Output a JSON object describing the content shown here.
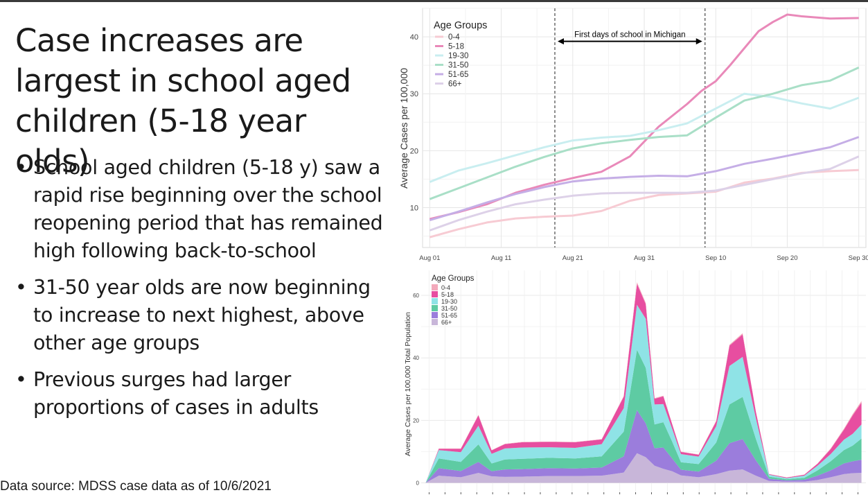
{
  "slide": {
    "title": "Case increases are largest in school aged children (5-18 year olds)",
    "bullets": [
      "School aged children (5-18 y) saw a rapid rise beginning over the school reopening period that has remained high following back-to-school",
      "31-50 year olds are now beginning to increase to next highest, above other age groups",
      "Previous surges had larger proportions of cases in adults"
    ],
    "bullet_symbol": "•",
    "source": "Data source: MDSS case data as of 10/6/2021"
  },
  "chart_data": [
    {
      "type": "line",
      "ylabel": "Average Cases per 100,000",
      "xlabel": "",
      "legend_title": "Age Groups",
      "legend_position": "top-left",
      "grid": true,
      "x_tick_labels": [
        "Aug 01",
        "Aug 11",
        "Aug 21",
        "Aug 31",
        "Sep 10",
        "Sep 20",
        "Sep 30"
      ],
      "x_tick_days": [
        0,
        10,
        20,
        30,
        40,
        50,
        60
      ],
      "xlim": [
        -1,
        61
      ],
      "ylim": [
        3,
        45
      ],
      "y_ticks": [
        10,
        20,
        30,
        40
      ],
      "annotation": {
        "text": "First days of school in Michigan",
        "from_day": 17.5,
        "to_day": 38.5,
        "y": 39.2
      },
      "vlines_day": [
        17.5,
        38.5
      ],
      "series": [
        {
          "name": "0-4",
          "color": "#f7cbd3",
          "x": [
            0,
            4,
            8,
            12,
            16,
            20,
            24,
            28,
            32,
            36,
            40,
            44,
            48,
            52,
            56,
            60
          ],
          "y": [
            4.8,
            6.2,
            7.4,
            8.1,
            8.4,
            8.6,
            9.4,
            11.2,
            12.2,
            12.5,
            12.8,
            14.4,
            15.1,
            16.1,
            16.4,
            16.6
          ]
        },
        {
          "name": "5-18",
          "color": "#e989b9",
          "x": [
            0,
            4,
            8,
            12,
            16,
            20,
            24,
            28,
            32,
            36,
            38,
            40,
            42,
            44,
            46,
            48,
            50,
            52,
            56,
            60
          ],
          "y": [
            8.0,
            9.2,
            10.6,
            12.6,
            14.0,
            15.2,
            16.3,
            19.0,
            24.2,
            28.2,
            30.5,
            32.2,
            35.0,
            38.0,
            41.0,
            42.6,
            43.9,
            43.6,
            43.2,
            43.3
          ]
        },
        {
          "name": "19-30",
          "color": "#c9eef0",
          "x": [
            0,
            4,
            8,
            12,
            16,
            20,
            24,
            28,
            32,
            36,
            40,
            44,
            48,
            52,
            56,
            60
          ],
          "y": [
            14.5,
            16.5,
            17.8,
            19.2,
            20.6,
            21.8,
            22.3,
            22.6,
            23.6,
            24.8,
            27.4,
            30.0,
            29.4,
            28.3,
            27.4,
            29.3
          ]
        },
        {
          "name": "31-50",
          "color": "#a9dfc7",
          "x": [
            0,
            4,
            8,
            12,
            16,
            20,
            24,
            28,
            32,
            36,
            40,
            44,
            48,
            52,
            56,
            60
          ],
          "y": [
            11.5,
            13.4,
            15.3,
            17.2,
            18.9,
            20.4,
            21.3,
            21.9,
            22.4,
            22.7,
            25.8,
            28.8,
            30.0,
            31.5,
            32.3,
            34.6
          ]
        },
        {
          "name": "51-65",
          "color": "#c5aee6",
          "x": [
            0,
            4,
            8,
            12,
            16,
            20,
            24,
            28,
            32,
            36,
            40,
            44,
            48,
            52,
            56,
            60
          ],
          "y": [
            7.8,
            9.3,
            10.9,
            12.4,
            13.6,
            14.6,
            15.1,
            15.4,
            15.6,
            15.5,
            16.4,
            17.7,
            18.6,
            19.6,
            20.6,
            22.4
          ]
        },
        {
          "name": "66+",
          "color": "#ddd1e8",
          "x": [
            0,
            4,
            8,
            12,
            16,
            20,
            24,
            28,
            32,
            36,
            40,
            44,
            48,
            52,
            56,
            60
          ],
          "y": [
            6.0,
            7.8,
            9.3,
            10.6,
            11.4,
            12.1,
            12.5,
            12.6,
            12.6,
            12.6,
            13.0,
            14.0,
            15.0,
            16.0,
            16.8,
            19.0
          ]
        }
      ]
    },
    {
      "type": "area",
      "stacked": true,
      "ylabel": "Average Cases per 100,000 Total Population",
      "xlabel": "",
      "legend_title": "Age Groups",
      "legend_position": "top-left",
      "grid": true,
      "xlim": [
        -1,
        100
      ],
      "ylim": [
        -3,
        68
      ],
      "y_ticks": [
        0,
        20,
        40,
        60
      ],
      "x_tick_count": 28,
      "series": [
        {
          "name": "66+",
          "color": "#c8b6d9",
          "x": [
            0,
            3,
            8,
            12,
            15,
            18,
            22,
            28,
            34,
            40,
            45,
            48,
            50,
            52,
            54,
            56,
            58,
            62,
            66,
            69,
            72,
            75,
            78,
            82,
            86,
            89,
            92,
            95,
            97,
            99
          ],
          "y": [
            0,
            2.3,
            1.8,
            3.2,
            2.1,
            1.9,
            2.0,
            2.2,
            2.2,
            2.3,
            3.3,
            9.5,
            8.2,
            5.5,
            4.5,
            3.7,
            2.4,
            1.8,
            2.8,
            3.9,
            4.3,
            2.3,
            0.6,
            0.4,
            0.4,
            0.9,
            1.8,
            2.8,
            3.1,
            3.2
          ]
        },
        {
          "name": "51-65",
          "color": "#9b7ddc",
          "x": [
            0,
            3,
            8,
            12,
            15,
            18,
            22,
            28,
            34,
            40,
            45,
            48,
            50,
            52,
            54,
            56,
            58,
            62,
            66,
            69,
            72,
            75,
            78,
            82,
            86,
            89,
            92,
            95,
            97,
            99
          ],
          "y": [
            0,
            2.4,
            2.0,
            3.5,
            1.6,
            2.4,
            2.4,
            2.5,
            2.4,
            2.6,
            5.2,
            13.8,
            10.8,
            5.6,
            6.8,
            4.1,
            1.8,
            1.8,
            4.3,
            8.8,
            9.7,
            4.9,
            0.7,
            0.4,
            0.6,
            1.4,
            2.2,
            3.4,
            3.8,
            4.2
          ]
        },
        {
          "name": "31-50",
          "color": "#5ecba3",
          "x": [
            0,
            3,
            8,
            12,
            15,
            18,
            22,
            28,
            34,
            40,
            45,
            48,
            50,
            52,
            54,
            56,
            58,
            62,
            66,
            69,
            72,
            75,
            78,
            82,
            86,
            89,
            92,
            95,
            97,
            99
          ],
          "y": [
            0,
            3.1,
            2.9,
            5.6,
            2.5,
            3.2,
            3.3,
            3.3,
            3.2,
            3.6,
            7.9,
            19.3,
            17.8,
            7.6,
            8.1,
            5.4,
            2.4,
            2.4,
            5.8,
            12.4,
            13.5,
            6.9,
            0.7,
            0.4,
            0.6,
            1.7,
            2.9,
            4.3,
            5.0,
            6.8
          ]
        },
        {
          "name": "19-30",
          "color": "#8fe3e6",
          "x": [
            0,
            3,
            8,
            12,
            15,
            18,
            22,
            28,
            34,
            40,
            45,
            48,
            50,
            52,
            54,
            56,
            58,
            62,
            66,
            69,
            72,
            75,
            78,
            82,
            86,
            89,
            92,
            95,
            97,
            99
          ],
          "y": [
            0,
            2.7,
            3.1,
            6.0,
            3.1,
            3.5,
            3.6,
            3.4,
            3.4,
            3.9,
            7.5,
            14.4,
            15.7,
            6.4,
            5.8,
            4.1,
            2.6,
            2.4,
            5.2,
            12.3,
            12.8,
            6.6,
            0.6,
            0.3,
            0.7,
            1.5,
            2.3,
            3.3,
            3.8,
            4.5
          ]
        },
        {
          "name": "5-18",
          "color": "#e74ea0",
          "x": [
            0,
            3,
            8,
            12,
            15,
            18,
            22,
            28,
            34,
            40,
            45,
            48,
            50,
            52,
            54,
            56,
            58,
            62,
            66,
            69,
            72,
            75,
            78,
            82,
            86,
            89,
            92,
            95,
            97,
            99
          ],
          "y": [
            0,
            0.4,
            1.1,
            3.3,
            1.1,
            1.4,
            1.7,
            1.7,
            1.8,
            1.5,
            3.7,
            6.7,
            4.7,
            1.8,
            2.5,
            1.5,
            0.7,
            0.6,
            1.6,
            6.5,
            7.2,
            2.1,
            0.2,
            0.2,
            0.3,
            0.6,
            1.6,
            3.2,
            5.9,
            7.0
          ]
        },
        {
          "name": "0-4",
          "color": "#f3a9bb",
          "x": [
            0,
            3,
            8,
            12,
            15,
            18,
            22,
            28,
            34,
            40,
            45,
            48,
            50,
            52,
            54,
            56,
            58,
            62,
            66,
            69,
            72,
            75,
            78,
            82,
            86,
            89,
            92,
            95,
            97,
            99
          ],
          "y": [
            0,
            0.1,
            0.1,
            0.2,
            0.1,
            0.1,
            0.1,
            0.1,
            0.1,
            0.1,
            0.2,
            0.5,
            0.4,
            0.2,
            0.2,
            0.1,
            0.1,
            0.1,
            0.2,
            0.3,
            0.4,
            0.1,
            0.05,
            0.05,
            0.05,
            0.1,
            0.2,
            0.3,
            0.4,
            0.5
          ]
        }
      ]
    }
  ]
}
